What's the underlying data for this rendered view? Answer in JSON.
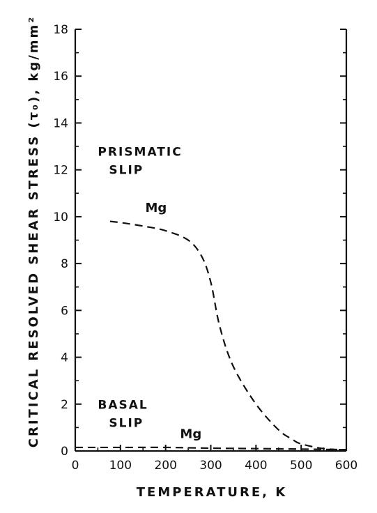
{
  "chart_data": {
    "type": "line",
    "xlabel": "TEMPERATURE, K",
    "ylabel": "CRITICAL RESOLVED SHEAR STRESS (τ₀), kg/mm²",
    "xlim": [
      0,
      600
    ],
    "ylim": [
      0,
      18
    ],
    "x_ticks": [
      0,
      100,
      200,
      300,
      400,
      500,
      600
    ],
    "y_ticks": [
      0,
      2,
      4,
      6,
      8,
      10,
      12,
      14,
      16,
      18
    ],
    "grid": false,
    "line_style": "dashed",
    "color": "#111111",
    "series": [
      {
        "name": "Mg",
        "x": [
          77,
          100,
          150,
          200,
          250,
          280,
          300,
          320,
          350,
          400,
          450,
          480,
          500,
          550,
          600
        ],
        "y": [
          9.8,
          9.75,
          9.6,
          9.4,
          9.0,
          8.3,
          7.2,
          5.3,
          3.6,
          2.0,
          0.9,
          0.5,
          0.3,
          0.1,
          0.05
        ]
      },
      {
        "name": "Mg",
        "x": [
          0,
          100,
          200,
          300,
          400,
          500,
          600
        ],
        "y": [
          0.15,
          0.15,
          0.15,
          0.12,
          0.1,
          0.08,
          0.05
        ]
      }
    ],
    "annotations": [
      {
        "text_lines": [
          "PRISMATIC",
          "SLIP"
        ],
        "x": 50,
        "y": 12.6
      },
      {
        "text_lines": [
          "BASAL",
          "SLIP"
        ],
        "x": 50,
        "y": 1.8
      }
    ],
    "series_labels": [
      {
        "text": "Mg",
        "x": 155,
        "y": 10.2
      },
      {
        "text": "Mg",
        "x": 232,
        "y": 0.55
      }
    ]
  }
}
